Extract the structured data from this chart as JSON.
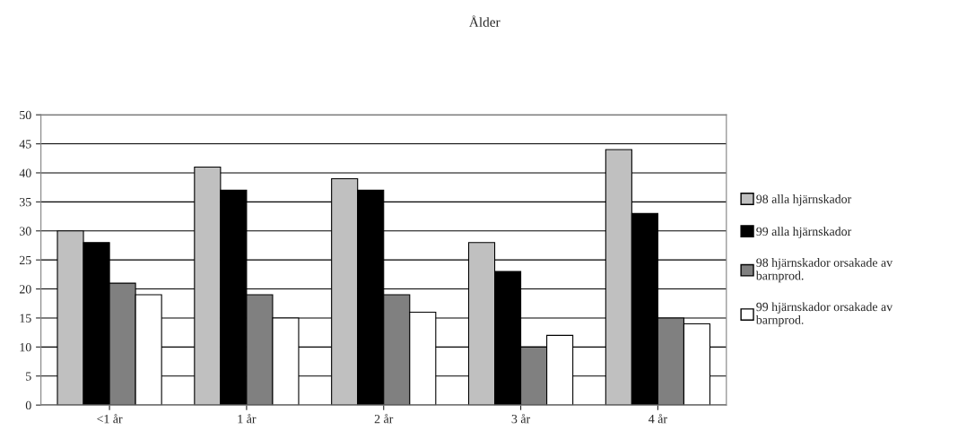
{
  "chart_data": {
    "type": "bar",
    "title": "Ålder",
    "categories": [
      "<1 år",
      "1 år",
      "2 år",
      "3 år",
      "4 år"
    ],
    "series": [
      {
        "name": "98 alla hjärnskador",
        "color": "#c0c0c0",
        "values": [
          30,
          41,
          39,
          28,
          44
        ]
      },
      {
        "name": "99 alla hjärnskador",
        "color": "#000000",
        "values": [
          28,
          37,
          37,
          23,
          33
        ]
      },
      {
        "name": "98 hjärnskador orsakade av\nbarnprod.",
        "color": "#808080",
        "values": [
          21,
          19,
          19,
          10,
          15
        ]
      },
      {
        "name": "99 hjärnskador orsakade av\nbarnprod.",
        "color": "#ffffff",
        "values": [
          19,
          15,
          16,
          12,
          14
        ]
      }
    ],
    "ylim": [
      0,
      50
    ],
    "yticks": [
      0,
      5,
      10,
      15,
      20,
      25,
      30,
      35,
      40,
      45,
      50
    ],
    "grid": "y",
    "legend": "right"
  }
}
